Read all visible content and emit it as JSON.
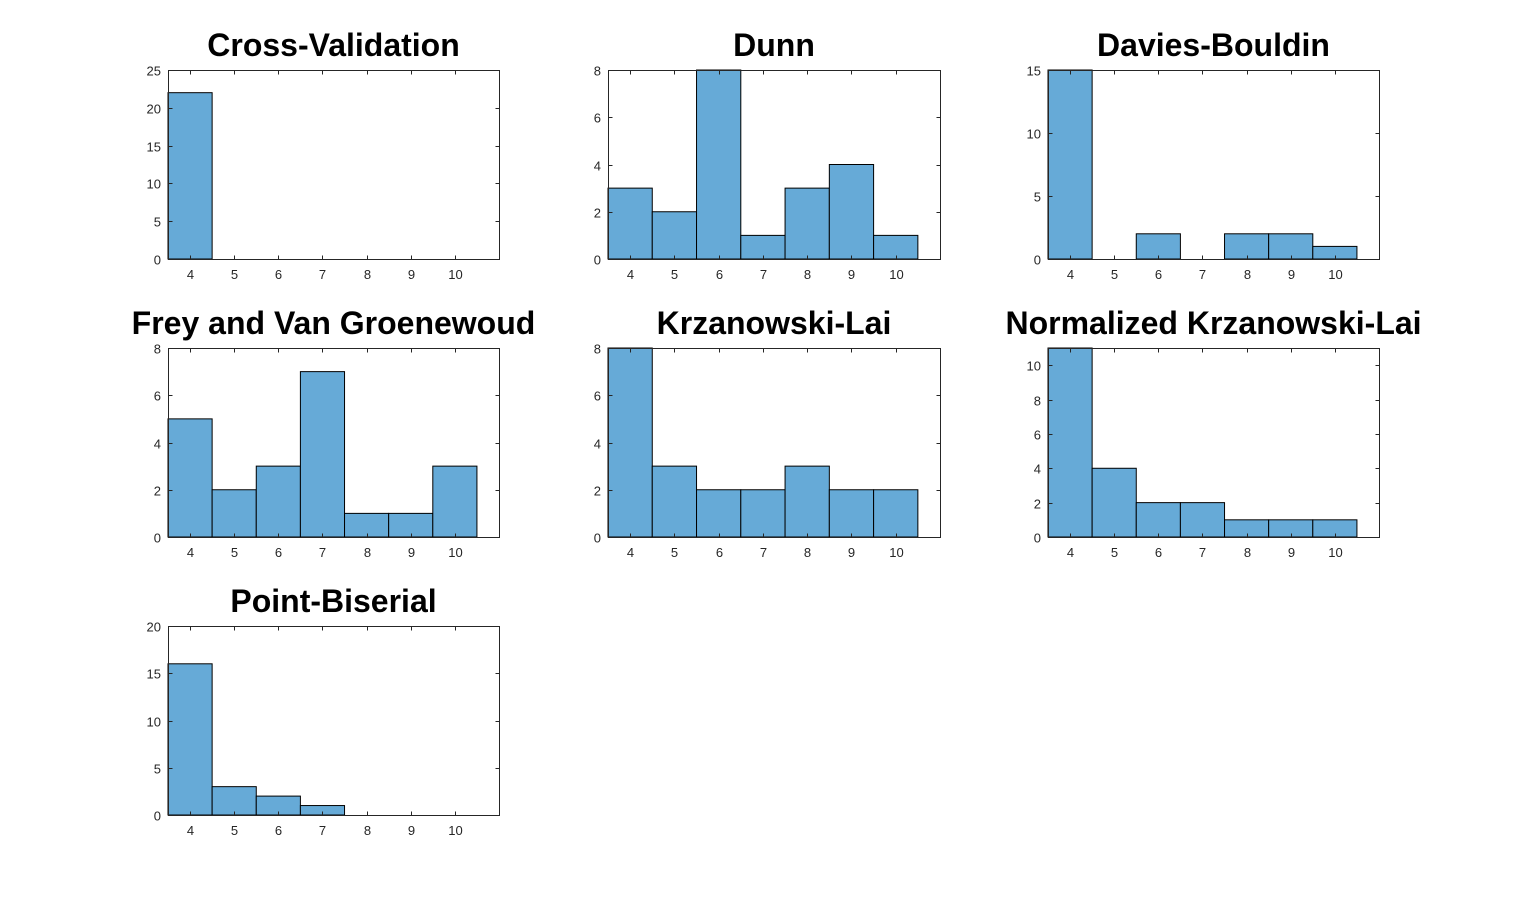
{
  "colors": {
    "bar_fill": "#66aad7",
    "bar_edge": "#000000",
    "axis": "#262626",
    "title": "#000000"
  },
  "chart_data": [
    {
      "type": "bar",
      "title": "Cross-Validation",
      "categories": [
        "4",
        "5",
        "6",
        "7",
        "8",
        "9",
        "10"
      ],
      "values": [
        22,
        0,
        0,
        0,
        0,
        0,
        0
      ],
      "xlabel": "",
      "ylabel": "",
      "ylim": [
        0,
        25
      ],
      "yticks": [
        0,
        5,
        10,
        15,
        20,
        25
      ],
      "grid": false
    },
    {
      "type": "bar",
      "title": "Dunn",
      "categories": [
        "4",
        "5",
        "6",
        "7",
        "8",
        "9",
        "10"
      ],
      "values": [
        3,
        2,
        8,
        1,
        3,
        4,
        1
      ],
      "xlabel": "",
      "ylabel": "",
      "ylim": [
        0,
        8
      ],
      "yticks": [
        0,
        2,
        4,
        6,
        8
      ],
      "grid": false
    },
    {
      "type": "bar",
      "title": "Davies-Bouldin",
      "categories": [
        "4",
        "5",
        "6",
        "7",
        "8",
        "9",
        "10"
      ],
      "values": [
        15,
        0,
        2,
        0,
        2,
        2,
        1
      ],
      "xlabel": "",
      "ylabel": "",
      "ylim": [
        0,
        15
      ],
      "yticks": [
        0,
        5,
        10,
        15
      ],
      "grid": false
    },
    {
      "type": "bar",
      "title": "Frey and Van Groenewoud",
      "categories": [
        "4",
        "5",
        "6",
        "7",
        "8",
        "9",
        "10"
      ],
      "values": [
        5,
        2,
        3,
        7,
        1,
        1,
        3
      ],
      "xlabel": "",
      "ylabel": "",
      "ylim": [
        0,
        8
      ],
      "yticks": [
        0,
        2,
        4,
        6,
        8
      ],
      "grid": false
    },
    {
      "type": "bar",
      "title": "Krzanowski-Lai",
      "categories": [
        "4",
        "5",
        "6",
        "7",
        "8",
        "9",
        "10"
      ],
      "values": [
        8,
        3,
        2,
        2,
        3,
        2,
        2
      ],
      "xlabel": "",
      "ylabel": "",
      "ylim": [
        0,
        8
      ],
      "yticks": [
        0,
        2,
        4,
        6,
        8
      ],
      "grid": false
    },
    {
      "type": "bar",
      "title": "Normalized Krzanowski-Lai",
      "categories": [
        "4",
        "5",
        "6",
        "7",
        "8",
        "9",
        "10"
      ],
      "values": [
        11,
        4,
        2,
        2,
        1,
        1,
        1
      ],
      "xlabel": "",
      "ylabel": "",
      "ylim": [
        0,
        11
      ],
      "yticks": [
        0,
        2,
        4,
        6,
        8,
        10
      ],
      "grid": false
    },
    {
      "type": "bar",
      "title": "Point-Biserial",
      "categories": [
        "4",
        "5",
        "6",
        "7",
        "8",
        "9",
        "10"
      ],
      "values": [
        16,
        3,
        2,
        1,
        0,
        0,
        0
      ],
      "xlabel": "",
      "ylabel": "",
      "ylim": [
        0,
        20
      ],
      "yticks": [
        0,
        5,
        10,
        15,
        20
      ],
      "grid": false
    }
  ]
}
